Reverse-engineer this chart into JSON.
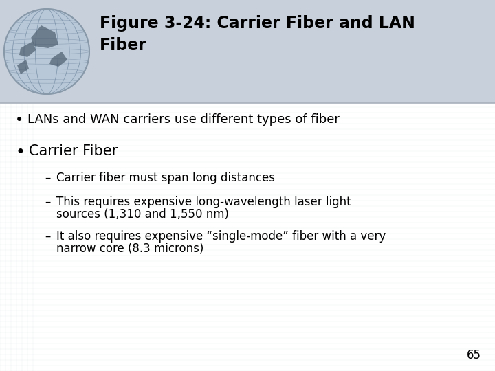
{
  "title_line1": "Figure 3-24: Carrier Fiber and LAN",
  "title_line2": "Fiber",
  "background_top": "#c8d0dc",
  "background_body": "#dce4ee",
  "body_white": "#f0f4f8",
  "title_color": "#000000",
  "title_fontsize": 17,
  "bullet_fontsize": 13,
  "bullet2_fontsize": 15,
  "sub_fontsize": 12,
  "page_number": "65",
  "bullet1": "LANs and WAN carriers use different types of fiber",
  "bullet2": "Carrier Fiber",
  "sub1": "Carrier fiber must span long distances",
  "sub2_line1": "This requires expensive long-wavelength laser light",
  "sub2_line2": "sources (1,310 and 1,550 nm)",
  "sub3_line1": "It also requires expensive “single-mode” fiber with a very",
  "sub3_line2": "narrow core (8.3 microns)"
}
